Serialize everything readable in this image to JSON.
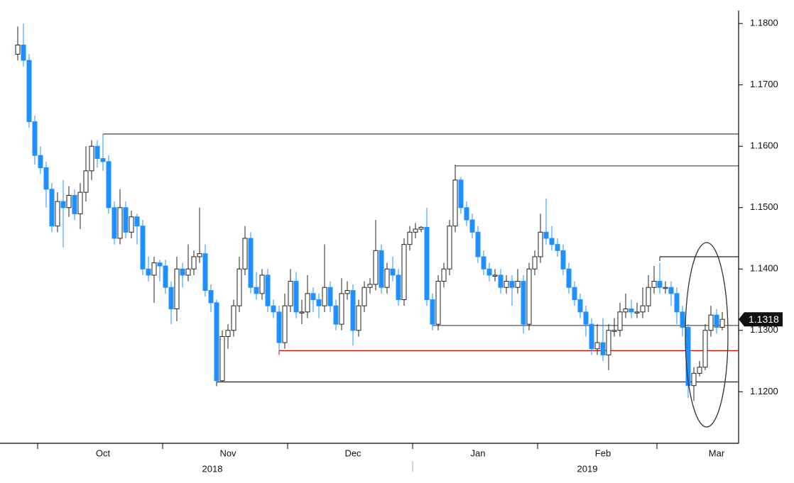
{
  "chart_data": {
    "type": "candlestick",
    "ylim": [
      1.1116,
      1.1821
    ],
    "yticks": [
      {
        "value": 1.12,
        "label": "1.1200"
      },
      {
        "value": 1.13,
        "label": "1.1300"
      },
      {
        "value": 1.14,
        "label": "1.1400"
      },
      {
        "value": 1.15,
        "label": "1.1500"
      },
      {
        "value": 1.16,
        "label": "1.1600"
      },
      {
        "value": 1.17,
        "label": "1.1700"
      },
      {
        "value": 1.18,
        "label": "1.1800"
      }
    ],
    "up_color": "#ffffff",
    "down_color": "#1e90ff",
    "categories": [
      null,
      null,
      null,
      null,
      null,
      null,
      null,
      null,
      null,
      null,
      null,
      null,
      null,
      null,
      null,
      "Oct",
      null,
      null,
      null,
      null,
      null,
      null,
      null,
      null,
      null,
      null,
      null,
      null,
      null,
      null,
      null,
      null,
      null,
      null,
      null,
      null,
      null,
      "Nov",
      null,
      null,
      null,
      null,
      null,
      null,
      null,
      null,
      null,
      null,
      null,
      null,
      null,
      null,
      null,
      null,
      null,
      null,
      null,
      null,
      null,
      "Dec",
      null,
      null,
      null,
      null,
      null,
      null,
      null,
      null,
      null,
      null,
      null,
      null,
      null,
      null,
      null,
      null,
      null,
      null,
      null,
      null,
      null,
      "Jan",
      null,
      null,
      null,
      null,
      null,
      null,
      null,
      null,
      null,
      null,
      null,
      null,
      null,
      null,
      null,
      null,
      null,
      null,
      null,
      null,
      null,
      "Feb",
      null,
      null,
      null,
      null,
      null,
      null,
      null,
      null,
      null,
      null,
      null,
      null,
      null,
      null,
      null,
      null,
      null,
      null,
      null,
      "Mar",
      null
    ],
    "years": {
      "37": "2018",
      "103": "2019"
    },
    "levels": [
      {
        "value": 1.162,
        "from": 15,
        "color": "#555555"
      },
      {
        "value": 1.1568,
        "from": 77,
        "color": "#555555"
      },
      {
        "value": 1.142,
        "from": 113,
        "color": "#222222"
      },
      {
        "value": 1.1308,
        "from": 73,
        "color": "#555555"
      },
      {
        "value": 1.1267,
        "from": 46,
        "color": "#e00000"
      },
      {
        "value": 1.1216,
        "from": 35,
        "color": "#222222"
      }
    ],
    "ohlc": [
      [
        1.175,
        1.1795,
        1.174,
        1.1765
      ],
      [
        1.1765,
        1.18,
        1.173,
        1.174
      ],
      [
        1.174,
        1.175,
        1.163,
        1.164
      ],
      [
        1.164,
        1.165,
        1.157,
        1.1585
      ],
      [
        1.1585,
        1.16,
        1.1555,
        1.1565
      ],
      [
        1.1565,
        1.1575,
        1.15,
        1.153
      ],
      [
        1.153,
        1.154,
        1.146,
        1.147
      ],
      [
        1.147,
        1.1525,
        1.146,
        1.151
      ],
      [
        1.151,
        1.1545,
        1.1435,
        1.15
      ],
      [
        1.15,
        1.1535,
        1.1485,
        1.152
      ],
      [
        1.152,
        1.153,
        1.148,
        1.149
      ],
      [
        1.149,
        1.154,
        1.1465,
        1.1525
      ],
      [
        1.1525,
        1.16,
        1.151,
        1.156
      ],
      [
        1.156,
        1.161,
        1.1545,
        1.16
      ],
      [
        1.16,
        1.161,
        1.1565,
        1.158
      ],
      [
        1.158,
        1.162,
        1.156,
        1.1575
      ],
      [
        1.1575,
        1.1585,
        1.149,
        1.15
      ],
      [
        1.15,
        1.151,
        1.144,
        1.145
      ],
      [
        1.145,
        1.153,
        1.144,
        1.15
      ],
      [
        1.15,
        1.151,
        1.145,
        1.146
      ],
      [
        1.146,
        1.1495,
        1.145,
        1.1485
      ],
      [
        1.1485,
        1.149,
        1.144,
        1.147
      ],
      [
        1.147,
        1.148,
        1.139,
        1.14
      ],
      [
        1.14,
        1.142,
        1.138,
        1.139
      ],
      [
        1.139,
        1.142,
        1.1345,
        1.141
      ],
      [
        1.141,
        1.1415,
        1.138,
        1.1405
      ],
      [
        1.1405,
        1.1415,
        1.136,
        1.137
      ],
      [
        1.137,
        1.138,
        1.131,
        1.1335
      ],
      [
        1.1335,
        1.142,
        1.1315,
        1.14
      ],
      [
        1.14,
        1.141,
        1.137,
        1.139
      ],
      [
        1.139,
        1.144,
        1.138,
        1.14
      ],
      [
        1.14,
        1.143,
        1.139,
        1.142
      ],
      [
        1.142,
        1.15,
        1.141,
        1.1425
      ],
      [
        1.1425,
        1.144,
        1.1355,
        1.1365
      ],
      [
        1.1365,
        1.1375,
        1.133,
        1.1345
      ],
      [
        1.1345,
        1.135,
        1.1216,
        1.1218
      ],
      [
        1.1218,
        1.13,
        1.1216,
        1.129
      ],
      [
        1.129,
        1.131,
        1.127,
        1.13
      ],
      [
        1.13,
        1.135,
        1.129,
        1.134
      ],
      [
        1.134,
        1.142,
        1.133,
        1.14
      ],
      [
        1.14,
        1.147,
        1.139,
        1.145
      ],
      [
        1.145,
        1.146,
        1.136,
        1.137
      ],
      [
        1.137,
        1.1395,
        1.135,
        1.136
      ],
      [
        1.136,
        1.14,
        1.135,
        1.139
      ],
      [
        1.139,
        1.14,
        1.133,
        1.134
      ],
      [
        1.134,
        1.135,
        1.132,
        1.133
      ],
      [
        1.133,
        1.134,
        1.1267,
        1.128
      ],
      [
        1.128,
        1.136,
        1.127,
        1.134
      ],
      [
        1.134,
        1.14,
        1.133,
        1.138
      ],
      [
        1.138,
        1.1395,
        1.132,
        1.133
      ],
      [
        1.133,
        1.135,
        1.131,
        1.133
      ],
      [
        1.133,
        1.139,
        1.132,
        1.136
      ],
      [
        1.136,
        1.137,
        1.133,
        1.135
      ],
      [
        1.135,
        1.136,
        1.132,
        1.134
      ],
      [
        1.134,
        1.144,
        1.133,
        1.137
      ],
      [
        1.137,
        1.138,
        1.133,
        1.134
      ],
      [
        1.134,
        1.135,
        1.13,
        1.131
      ],
      [
        1.131,
        1.1385,
        1.13,
        1.136
      ],
      [
        1.136,
        1.138,
        1.135,
        1.1365
      ],
      [
        1.1365,
        1.1375,
        1.1275,
        1.13
      ],
      [
        1.13,
        1.135,
        1.129,
        1.134
      ],
      [
        1.134,
        1.138,
        1.133,
        1.137
      ],
      [
        1.137,
        1.1385,
        1.136,
        1.1375
      ],
      [
        1.1375,
        1.148,
        1.1365,
        1.143
      ],
      [
        1.143,
        1.144,
        1.136,
        1.137
      ],
      [
        1.137,
        1.141,
        1.136,
        1.14
      ],
      [
        1.14,
        1.142,
        1.138,
        1.139
      ],
      [
        1.139,
        1.14,
        1.134,
        1.135
      ],
      [
        1.135,
        1.145,
        1.134,
        1.144
      ],
      [
        1.144,
        1.147,
        1.143,
        1.146
      ],
      [
        1.146,
        1.1475,
        1.145,
        1.1465
      ],
      [
        1.1465,
        1.147,
        1.146,
        1.1468
      ],
      [
        1.1468,
        1.15,
        1.134,
        1.135
      ],
      [
        1.135,
        1.136,
        1.13,
        1.131
      ],
      [
        1.131,
        1.139,
        1.13,
        1.138
      ],
      [
        1.138,
        1.141,
        1.137,
        1.14
      ],
      [
        1.14,
        1.148,
        1.139,
        1.147
      ],
      [
        1.147,
        1.157,
        1.146,
        1.1545
      ],
      [
        1.1545,
        1.155,
        1.149,
        1.15
      ],
      [
        1.15,
        1.151,
        1.147,
        1.148
      ],
      [
        1.148,
        1.149,
        1.145,
        1.146
      ],
      [
        1.146,
        1.147,
        1.141,
        1.142
      ],
      [
        1.142,
        1.143,
        1.139,
        1.14
      ],
      [
        1.14,
        1.141,
        1.138,
        1.139
      ],
      [
        1.139,
        1.14,
        1.138,
        1.139
      ],
      [
        1.139,
        1.14,
        1.136,
        1.137
      ],
      [
        1.137,
        1.139,
        1.136,
        1.138
      ],
      [
        1.138,
        1.139,
        1.134,
        1.137
      ],
      [
        1.137,
        1.14,
        1.136,
        1.138
      ],
      [
        1.138,
        1.139,
        1.1295,
        1.131
      ],
      [
        1.131,
        1.141,
        1.13,
        1.14
      ],
      [
        1.14,
        1.143,
        1.139,
        1.142
      ],
      [
        1.142,
        1.149,
        1.141,
        1.146
      ],
      [
        1.146,
        1.1515,
        1.144,
        1.145
      ],
      [
        1.145,
        1.147,
        1.143,
        1.144
      ],
      [
        1.144,
        1.145,
        1.142,
        1.143
      ],
      [
        1.143,
        1.144,
        1.139,
        1.14
      ],
      [
        1.14,
        1.141,
        1.136,
        1.137
      ],
      [
        1.137,
        1.138,
        1.134,
        1.135
      ],
      [
        1.135,
        1.136,
        1.132,
        1.133
      ],
      [
        1.133,
        1.134,
        1.129,
        1.131
      ],
      [
        1.131,
        1.132,
        1.126,
        1.127
      ],
      [
        1.127,
        1.131,
        1.126,
        1.128
      ],
      [
        1.128,
        1.132,
        1.125,
        1.126
      ],
      [
        1.126,
        1.131,
        1.1235,
        1.13
      ],
      [
        1.13,
        1.132,
        1.129,
        1.13
      ],
      [
        1.13,
        1.1345,
        1.129,
        1.133
      ],
      [
        1.133,
        1.136,
        1.132,
        1.1335
      ],
      [
        1.1335,
        1.135,
        1.132,
        1.133
      ],
      [
        1.133,
        1.1345,
        1.132,
        1.133
      ],
      [
        1.133,
        1.137,
        1.132,
        1.134
      ],
      [
        1.134,
        1.139,
        1.133,
        1.137
      ],
      [
        1.137,
        1.1405,
        1.136,
        1.138
      ],
      [
        1.138,
        1.141,
        1.136,
        1.137
      ],
      [
        1.137,
        1.138,
        1.136,
        1.137
      ],
      [
        1.137,
        1.138,
        1.134,
        1.136
      ],
      [
        1.136,
        1.137,
        1.131,
        1.133
      ],
      [
        1.133,
        1.134,
        1.129,
        1.1305
      ],
      [
        1.1305,
        1.131,
        1.119,
        1.121
      ],
      [
        1.121,
        1.124,
        1.1185,
        1.123
      ],
      [
        1.123,
        1.125,
        1.1225,
        1.124
      ],
      [
        1.124,
        1.131,
        1.1235,
        1.13
      ],
      [
        1.13,
        1.134,
        1.129,
        1.1325
      ],
      [
        1.1325,
        1.1335,
        1.1295,
        1.1305
      ],
      [
        1.1305,
        1.133,
        1.13,
        1.1318
      ]
    ]
  }
}
